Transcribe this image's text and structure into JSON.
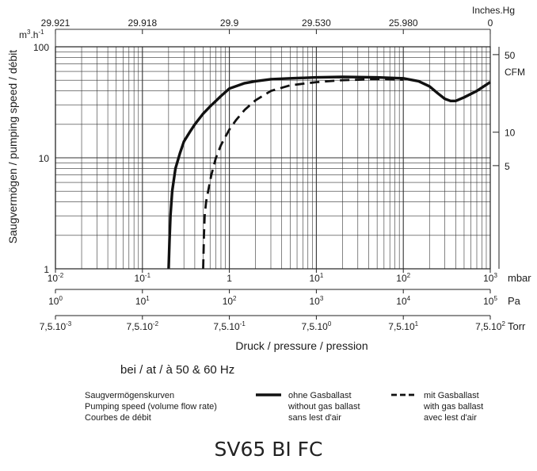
{
  "chart_data": {
    "type": "line",
    "title": "",
    "xlabel": "Druck / pressure / pression",
    "ylabel": "Saugvermögen / pumping speed / débit",
    "y_unit": "m³.h⁻¹",
    "y_scale": "log",
    "ylim": [
      1,
      100
    ],
    "y_ticks": [
      "1",
      "10",
      "100"
    ],
    "x_scale": "log",
    "xlim": [
      0.01,
      1000
    ],
    "grid": true,
    "x_axes": [
      {
        "unit": "mbar",
        "ticks": [
          {
            "value": 0.01,
            "base": "10",
            "exp": "-2"
          },
          {
            "value": 0.1,
            "base": "10",
            "exp": "-1"
          },
          {
            "value": 1,
            "base": "1",
            "exp": ""
          },
          {
            "value": 10,
            "base": "10",
            "exp": "1"
          },
          {
            "value": 100,
            "base": "10",
            "exp": "2"
          },
          {
            "value": 1000,
            "base": "10",
            "exp": "3"
          }
        ]
      },
      {
        "unit": "Pa",
        "ticks": [
          {
            "value": 0.01,
            "base": "10",
            "exp": "0"
          },
          {
            "value": 0.1,
            "base": "10",
            "exp": "1"
          },
          {
            "value": 1,
            "base": "10",
            "exp": "2"
          },
          {
            "value": 10,
            "base": "10",
            "exp": "3"
          },
          {
            "value": 100,
            "base": "10",
            "exp": "4"
          },
          {
            "value": 1000,
            "base": "10",
            "exp": "5"
          }
        ]
      },
      {
        "unit": "Torr",
        "ticks": [
          {
            "value": 0.01,
            "base": "7,5.10",
            "exp": "-3"
          },
          {
            "value": 0.1,
            "base": "7,5.10",
            "exp": "-2"
          },
          {
            "value": 1,
            "base": "7,5.10",
            "exp": "-1"
          },
          {
            "value": 10,
            "base": "7,5.10",
            "exp": "0"
          },
          {
            "value": 100,
            "base": "7,5.10",
            "exp": "1"
          },
          {
            "value": 1000,
            "base": "7,5.10",
            "exp": "2"
          }
        ]
      }
    ],
    "top_axis": {
      "unit": "Inches.Hg",
      "ticks": [
        {
          "value": 0.01,
          "label": "29.921"
        },
        {
          "value": 0.1,
          "label": "29.918"
        },
        {
          "value": 1,
          "label": "29.9"
        },
        {
          "value": 10,
          "label": "29.530"
        },
        {
          "value": 100,
          "label": "25.980"
        },
        {
          "value": 1000,
          "label": "0"
        }
      ]
    },
    "right_axis": {
      "unit": "CFM",
      "ticks": [
        {
          "value": 8.5,
          "label": "5"
        },
        {
          "value": 17,
          "label": "10"
        },
        {
          "value": 85,
          "label": "50"
        }
      ]
    },
    "series": [
      {
        "name": "",
        "style": "solid",
        "x": [
          0.2,
          0.205,
          0.21,
          0.22,
          0.24,
          0.27,
          0.3,
          0.35,
          0.4,
          0.5,
          0.6,
          0.8,
          1,
          1.5,
          2,
          3,
          5,
          10,
          20,
          50,
          100,
          150,
          200,
          250,
          300,
          350,
          400,
          500,
          700,
          1000
        ],
        "y": [
          1,
          1.8,
          3,
          5,
          8,
          11,
          14,
          17,
          20,
          25,
          29,
          36,
          42,
          47,
          49,
          51,
          52,
          53,
          53.5,
          53,
          52,
          49,
          44,
          38,
          34,
          32.5,
          32.5,
          35,
          40,
          48
        ]
      },
      {
        "name": "",
        "style": "dashed",
        "x": [
          0.5,
          0.51,
          0.52,
          0.54,
          0.57,
          0.62,
          0.7,
          0.8,
          0.9,
          1.0,
          1.2,
          1.5,
          2,
          3,
          5,
          10,
          20,
          50,
          100
        ],
        "y": [
          1,
          2,
          3,
          4,
          5,
          7,
          10,
          13,
          15.5,
          18,
          22,
          27,
          33,
          40,
          45,
          48,
          50,
          51,
          50.5
        ]
      }
    ]
  },
  "subtitle": "bei / at / à 50 & 60 Hz",
  "legend": {
    "description": [
      "Saugvermögenskurven",
      "Pumping speed (volume flow rate)",
      "Courbes de débit"
    ],
    "solid_label": [
      "ohne Gasballast",
      "without gas ballast",
      "sans lest d'air"
    ],
    "dashed_label": [
      "mit Gasballast",
      "with gas ballast",
      "avec lest d'air"
    ]
  },
  "model": "SV65 BI FC"
}
